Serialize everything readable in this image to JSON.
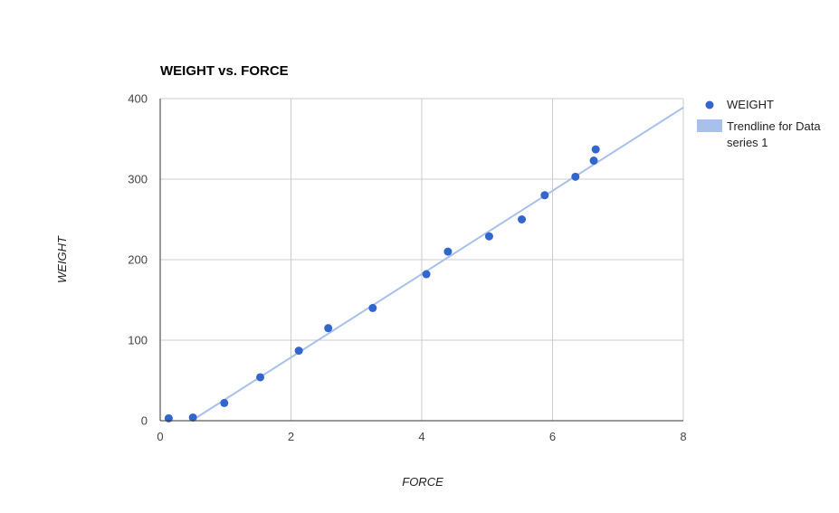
{
  "chart_data": {
    "type": "scatter",
    "title": "WEIGHT vs. FORCE",
    "xlabel": "FORCE",
    "ylabel": "WEIGHT",
    "xlim": [
      0,
      8
    ],
    "ylim": [
      0,
      400
    ],
    "x_ticks": [
      "0",
      "2",
      "4",
      "6",
      "8"
    ],
    "y_ticks": [
      "0",
      "100",
      "200",
      "300",
      "400"
    ],
    "grid": true,
    "legend_position": "right",
    "series": [
      {
        "name": "WEIGHT",
        "color": "#3366cc",
        "points": [
          {
            "x": 0.13,
            "y": 3
          },
          {
            "x": 0.5,
            "y": 4
          },
          {
            "x": 0.98,
            "y": 22
          },
          {
            "x": 1.53,
            "y": 54
          },
          {
            "x": 2.12,
            "y": 87
          },
          {
            "x": 2.57,
            "y": 115
          },
          {
            "x": 3.25,
            "y": 140
          },
          {
            "x": 4.07,
            "y": 182
          },
          {
            "x": 4.4,
            "y": 210
          },
          {
            "x": 5.03,
            "y": 229
          },
          {
            "x": 5.53,
            "y": 250
          },
          {
            "x": 5.88,
            "y": 280
          },
          {
            "x": 6.35,
            "y": 303
          },
          {
            "x": 6.63,
            "y": 323
          },
          {
            "x": 6.66,
            "y": 337
          }
        ]
      }
    ],
    "trendline": {
      "name": "Trendline for Data series 1",
      "legend_lines": [
        "Trendline for Data",
        "series 1"
      ],
      "color": "#a9c0ea",
      "start": {
        "x": 0.48,
        "y": 0
      },
      "end": {
        "x": 8,
        "y": 389
      }
    }
  }
}
